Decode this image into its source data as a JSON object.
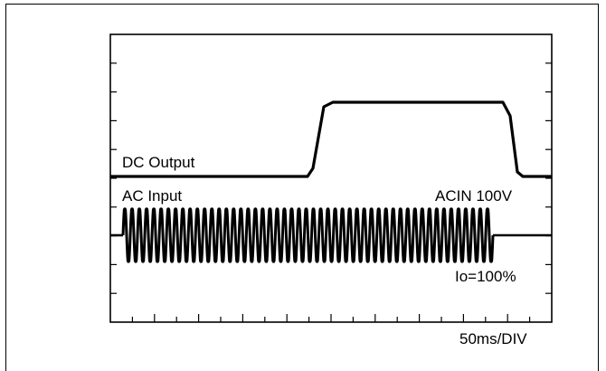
{
  "chart_data": {
    "type": "line",
    "title": "",
    "xlabel": "",
    "ylabel": "",
    "scale_label": "50ms/DIV",
    "x_divisions": 10,
    "x_unit": "ms",
    "ms_per_div": 50,
    "grid": false,
    "series": [
      {
        "name": "DC Output",
        "description_points": [
          {
            "t_ms": 0,
            "level": "low"
          },
          {
            "t_ms": 262,
            "level": "low"
          },
          {
            "t_ms": 272,
            "level": "high"
          },
          {
            "t_ms": 503,
            "level": "high"
          },
          {
            "t_ms": 512,
            "level": "droop"
          },
          {
            "t_ms": 520,
            "level": "low"
          },
          {
            "t_ms": 592,
            "level": "low"
          }
        ]
      },
      {
        "name": "AC Input",
        "condition": "ACIN 100V",
        "burst_start_ms": 0,
        "burst_end_ms": 510,
        "cycles": 51
      }
    ],
    "annotations": {
      "dc_label": "DC Output",
      "ac_label": "AC Input",
      "acin": "ACIN 100V",
      "io": "Io=100%",
      "timebase": "50ms/DIV"
    }
  }
}
